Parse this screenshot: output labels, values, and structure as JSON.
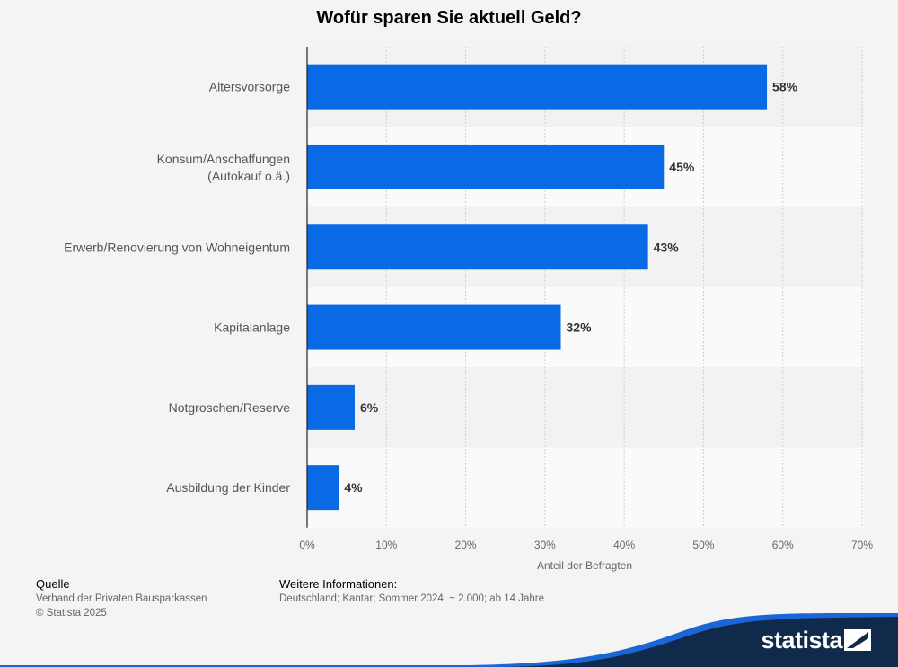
{
  "chart_data": {
    "type": "bar",
    "orientation": "horizontal",
    "title": "Wofür sparen Sie aktuell Geld?",
    "categories": [
      "Altersvorsorge",
      "Konsum/Anschaffungen (Autokauf o.ä.)",
      "Erwerb/Renovierung von Wohneigentum",
      "Kapitalanlage",
      "Notgroschen/Reserve",
      "Ausbildung der Kinder"
    ],
    "category_lines": [
      [
        "Altersvorsorge"
      ],
      [
        "Konsum/Anschaffungen",
        "(Autokauf o.ä.)"
      ],
      [
        "Erwerb/Renovierung von Wohneigentum"
      ],
      [
        "Kapitalanlage"
      ],
      [
        "Notgroschen/Reserve"
      ],
      [
        "Ausbildung der Kinder"
      ]
    ],
    "values": [
      58,
      45,
      43,
      32,
      6,
      4
    ],
    "value_labels": [
      "58%",
      "45%",
      "43%",
      "32%",
      "6%",
      "4%"
    ],
    "xlabel": "Anteil der Befragten",
    "ylabel": "",
    "xlim": [
      0,
      70
    ],
    "xticks": [
      0,
      10,
      20,
      30,
      40,
      50,
      60,
      70
    ],
    "xtick_labels": [
      "0%",
      "10%",
      "20%",
      "30%",
      "40%",
      "50%",
      "60%",
      "70%"
    ],
    "grid": true,
    "bar_color": "#0a6ae6"
  },
  "footer": {
    "source_heading": "Quelle",
    "source_text": "Verband der Privaten Bausparkassen",
    "copyright": "© Statista 2025",
    "info_heading": "Weitere Informationen:",
    "info_text": "Deutschland; Kantar; Sommer 2024; ~ 2.000; ab 14 Jahre"
  },
  "brand": {
    "name": "statista",
    "icon": "statista-logo-icon",
    "color": "#0f2a4a",
    "accent": "#1a66d6"
  }
}
